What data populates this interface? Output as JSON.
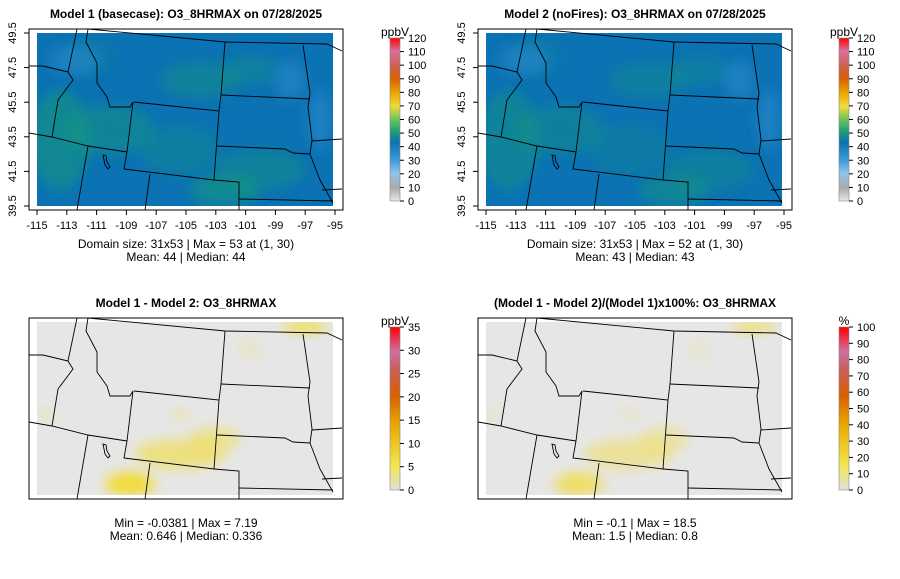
{
  "panels": [
    {
      "title": "Model 1 (basecase): O3_8HRMAX on 07/28/2025",
      "unit": "ppbV",
      "stat1": "Domain size: 31x53 | Max = 53 at (1, 30)",
      "stat2": "Mean: 44 |  Median: 44",
      "ticks": [
        "0",
        "10",
        "20",
        "30",
        "40",
        "50",
        "60",
        "70",
        "80",
        "90",
        "100",
        "110",
        "120"
      ],
      "kind": "abs",
      "axes": true
    },
    {
      "title": "Model 2 (noFires): O3_8HRMAX on 07/28/2025",
      "unit": "ppbV",
      "stat1": "Domain size: 31x53 | Max = 52 at (1, 30)",
      "stat2": "Mean: 43 |  Median: 43",
      "ticks": [
        "0",
        "10",
        "20",
        "30",
        "40",
        "50",
        "60",
        "70",
        "80",
        "90",
        "100",
        "110",
        "120"
      ],
      "kind": "abs",
      "axes": true
    },
    {
      "title": "Model 1 - Model 2: O3_8HRMAX",
      "unit": "ppbV",
      "stat1": "Min = -0.0381 | Max = 7.19",
      "stat2": "Mean: 0.646 |  Median: 0.336",
      "ticks": [
        "0",
        "5",
        "10",
        "15",
        "20",
        "25",
        "30",
        "35"
      ],
      "kind": "diff",
      "axes": false
    },
    {
      "title": "(Model 1 - Model 2)/(Model 1)x100%: O3_8HRMAX",
      "unit": "%",
      "stat1": "Min = -0.1 | Max = 18.5",
      "stat2": "Mean: 1.5 |  Median: 0.8",
      "ticks": [
        "0",
        "10",
        "20",
        "30",
        "40",
        "50",
        "60",
        "70",
        "80",
        "90",
        "100"
      ],
      "kind": "diff",
      "axes": false
    }
  ],
  "x_ticks": [
    "-115",
    "-113",
    "-111",
    "-109",
    "-107",
    "-105",
    "-103",
    "-101",
    "-99",
    "-97",
    "-95"
  ],
  "y_ticks": [
    "39.5",
    "41.5",
    "43.5",
    "45.5",
    "47.5",
    "49.5"
  ],
  "colors": {
    "base": "#0b72b3",
    "green": "#199a7a",
    "diffbg": "#e6e6e6",
    "yellow": "#f2dc3a"
  }
}
